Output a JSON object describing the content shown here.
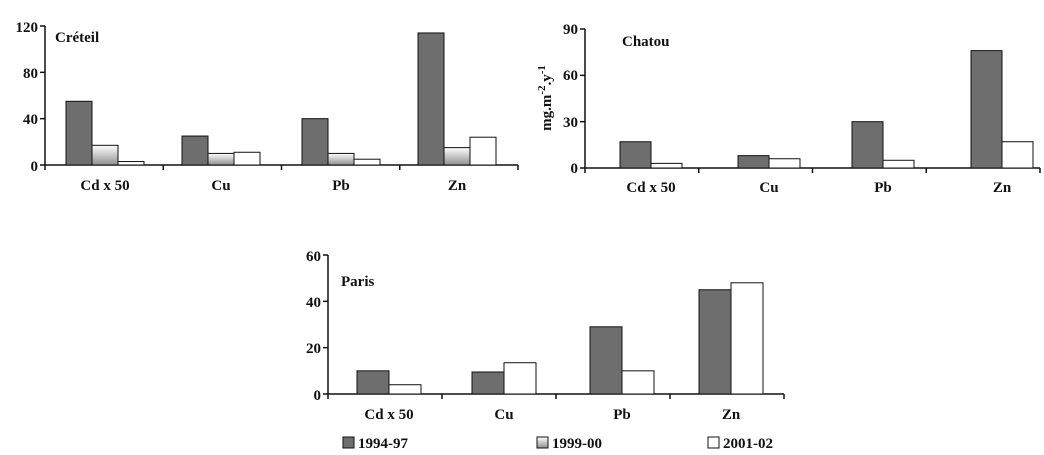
{
  "colors": {
    "series_1994_97": "#6e6e6e",
    "series_1999_00_light": "#ffffff",
    "series_1999_00_dark": "#9a9a9a",
    "series_2001_02": "#ffffff",
    "axis": "#111111",
    "bar_stroke": "#111111"
  },
  "legend": {
    "items": [
      {
        "label": "1994-97",
        "style": "dark"
      },
      {
        "label": "1999-00",
        "style": "gradient"
      },
      {
        "label": "2001-02",
        "style": "white"
      }
    ]
  },
  "chart_data": [
    {
      "type": "bar",
      "panel_label": "Créteil",
      "ylabel": "",
      "categories": [
        "Cd x 50",
        "Cu",
        "Pb",
        "Zn"
      ],
      "ylim": [
        0,
        120
      ],
      "yticks": [
        "0",
        "40",
        "80",
        "120"
      ],
      "grid": false,
      "series": [
        {
          "name": "1994-97",
          "values": [
            55,
            25,
            40,
            114
          ]
        },
        {
          "name": "1999-00",
          "values": [
            17,
            10,
            10,
            15
          ]
        },
        {
          "name": "2001-02",
          "values": [
            3,
            11,
            5,
            24
          ]
        }
      ]
    },
    {
      "type": "bar",
      "panel_label": "Chatou",
      "ylabel": "mg.m-2.y-1",
      "categories": [
        "Cd x 50",
        "Cu",
        "Pb",
        "Zn"
      ],
      "ylim": [
        0,
        90
      ],
      "yticks": [
        "0",
        "30",
        "60",
        "90"
      ],
      "grid": false,
      "series": [
        {
          "name": "1994-97",
          "values": [
            17,
            8,
            30,
            76
          ]
        },
        {
          "name": "2001-02",
          "values": [
            3,
            6,
            5,
            17
          ]
        }
      ]
    },
    {
      "type": "bar",
      "panel_label": "Paris",
      "ylabel": "",
      "categories": [
        "Cd x 50",
        "Cu",
        "Pb",
        "Zn"
      ],
      "ylim": [
        0,
        60
      ],
      "yticks": [
        "0",
        "20",
        "40",
        "60"
      ],
      "grid": false,
      "series": [
        {
          "name": "1994-97",
          "values": [
            10,
            9.5,
            29,
            45
          ]
        },
        {
          "name": "2001-02",
          "values": [
            4,
            13.5,
            10,
            48
          ]
        }
      ]
    }
  ]
}
